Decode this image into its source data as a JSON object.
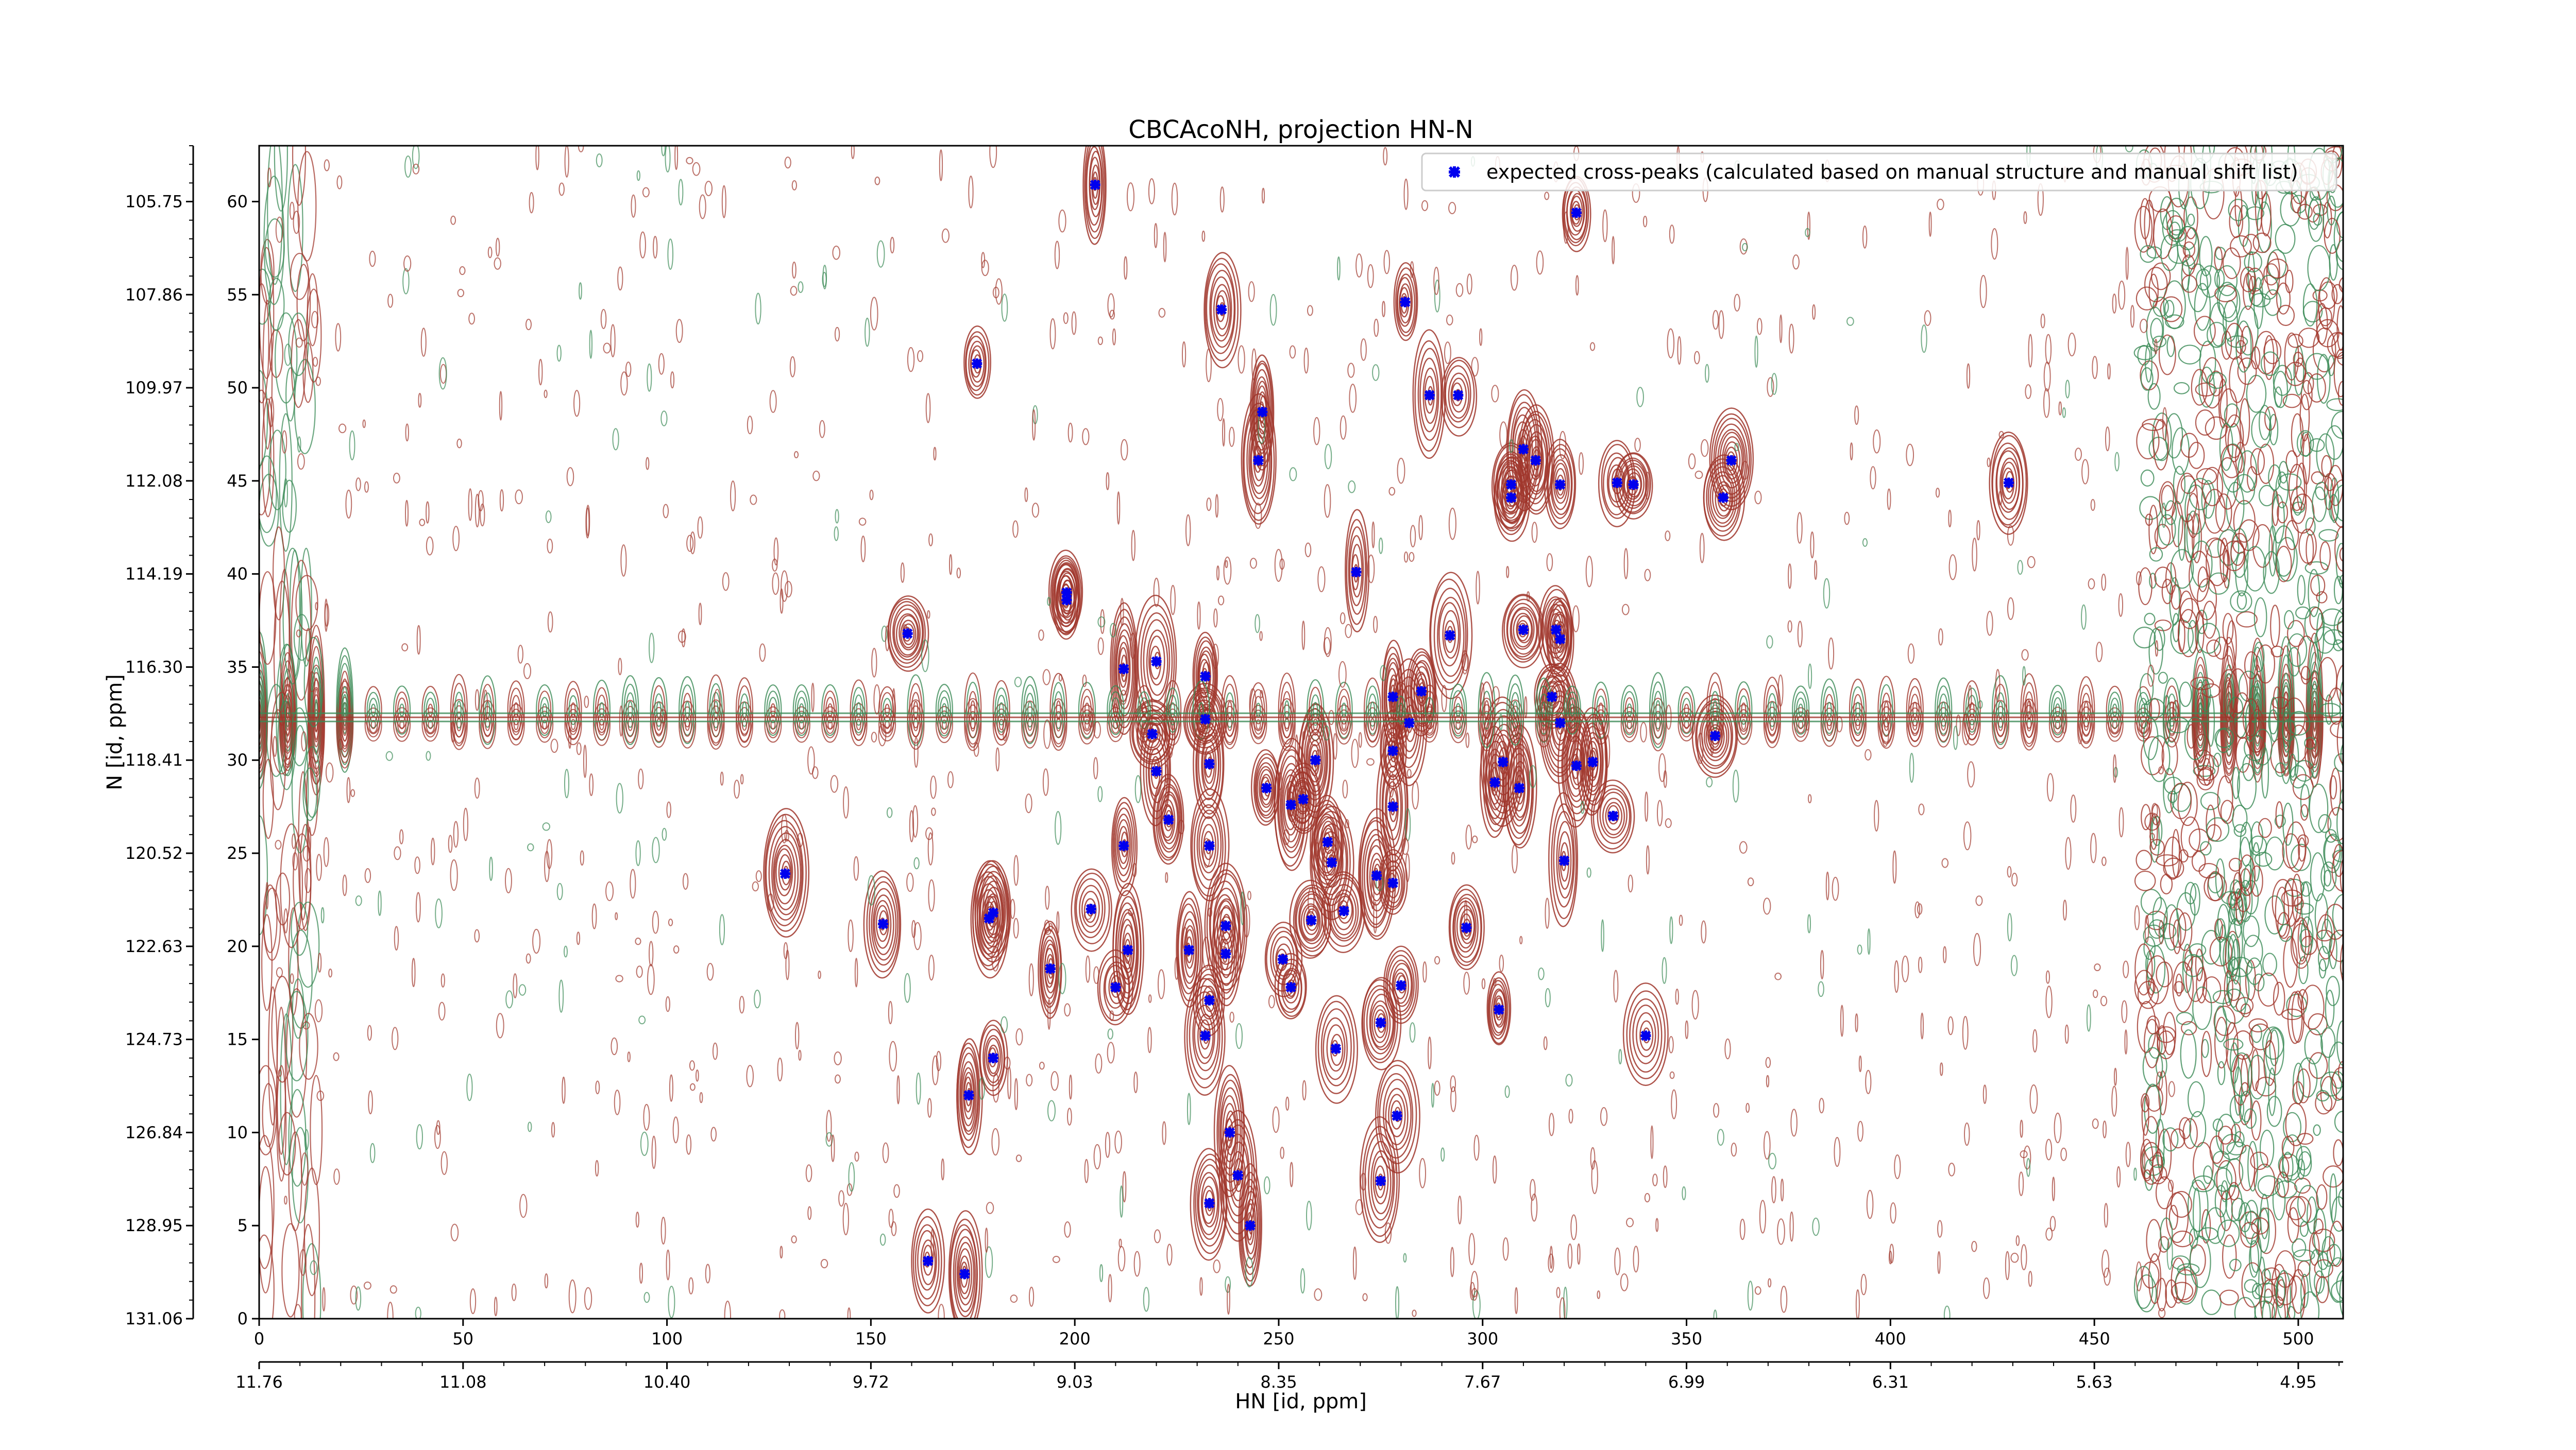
{
  "chart_data": {
    "type": "scatter",
    "title": "CBCAcoNH, projection HN-N",
    "xlabel": "HN [id, ppm]",
    "ylabel": "N [id, ppm]",
    "xlim": [
      0,
      511
    ],
    "ylim": [
      0,
      63
    ],
    "x_ticks": [
      0,
      50,
      100,
      150,
      200,
      250,
      300,
      350,
      400,
      450,
      500
    ],
    "y_ticks": [
      0,
      5,
      10,
      15,
      20,
      25,
      30,
      35,
      40,
      45,
      50,
      55,
      60
    ],
    "x_secondary_ticks": [
      {
        "pos": 0,
        "label": "11.76"
      },
      {
        "pos": 50,
        "label": "11.08"
      },
      {
        "pos": 100,
        "label": "10.40"
      },
      {
        "pos": 150,
        "label": "9.72"
      },
      {
        "pos": 200,
        "label": "9.03"
      },
      {
        "pos": 250,
        "label": "8.35"
      },
      {
        "pos": 300,
        "label": "7.67"
      },
      {
        "pos": 350,
        "label": "6.99"
      },
      {
        "pos": 400,
        "label": "6.31"
      },
      {
        "pos": 450,
        "label": "5.63"
      },
      {
        "pos": 500,
        "label": "4.95"
      }
    ],
    "y_secondary_ticks": [
      {
        "pos": 0,
        "label": "131.06"
      },
      {
        "pos": 5,
        "label": "128.95"
      },
      {
        "pos": 10,
        "label": "126.84"
      },
      {
        "pos": 15,
        "label": "124.73"
      },
      {
        "pos": 20,
        "label": "122.63"
      },
      {
        "pos": 25,
        "label": "120.52"
      },
      {
        "pos": 30,
        "label": "118.41"
      },
      {
        "pos": 35,
        "label": "116.30"
      },
      {
        "pos": 40,
        "label": "114.19"
      },
      {
        "pos": 45,
        "label": "112.08"
      },
      {
        "pos": 50,
        "label": "109.97"
      },
      {
        "pos": 55,
        "label": "107.86"
      },
      {
        "pos": 60,
        "label": "105.75"
      }
    ],
    "legend": {
      "position": "top-right",
      "entries": [
        "expected cross-peaks (calculated based on manual structure and manual shift list)"
      ]
    },
    "grid": false,
    "contour_colors": {
      "positive": "#a0362b",
      "negative": "#3a8a55"
    },
    "marker_color": "#0000ee",
    "series": [
      {
        "name": "expected cross-peaks (calculated based on manual structure and manual shift list)",
        "points": [
          [
            205,
            60.9
          ],
          [
            323,
            59.4
          ],
          [
            236,
            54.2
          ],
          [
            281,
            54.6
          ],
          [
            176,
            51.3
          ],
          [
            246,
            48.7
          ],
          [
            287,
            49.6
          ],
          [
            294,
            49.6
          ],
          [
            245,
            46.1
          ],
          [
            310,
            46.7
          ],
          [
            313,
            46.1
          ],
          [
            307,
            44.8
          ],
          [
            307,
            44.1
          ],
          [
            319,
            44.8
          ],
          [
            333,
            44.9
          ],
          [
            337,
            44.8
          ],
          [
            361,
            46.1
          ],
          [
            359,
            44.1
          ],
          [
            429,
            44.9
          ],
          [
            269,
            40.1
          ],
          [
            198,
            39.0
          ],
          [
            198,
            38.6
          ],
          [
            159,
            36.8
          ],
          [
            292,
            36.7
          ],
          [
            310,
            37.0
          ],
          [
            318,
            37.0
          ],
          [
            319,
            36.5
          ],
          [
            212,
            34.9
          ],
          [
            220,
            35.3
          ],
          [
            232,
            34.5
          ],
          [
            232,
            32.2
          ],
          [
            278,
            33.4
          ],
          [
            285,
            33.7
          ],
          [
            317,
            33.4
          ],
          [
            282,
            32.0
          ],
          [
            319,
            32.0
          ],
          [
            219,
            31.4
          ],
          [
            278,
            30.5
          ],
          [
            259,
            30.0
          ],
          [
            305,
            29.9
          ],
          [
            303,
            28.8
          ],
          [
            233,
            29.8
          ],
          [
            220,
            29.4
          ],
          [
            323,
            29.7
          ],
          [
            327,
            29.9
          ],
          [
            357,
            31.3
          ],
          [
            247,
            28.5
          ],
          [
            253,
            27.6
          ],
          [
            256,
            27.9
          ],
          [
            278,
            27.5
          ],
          [
            309,
            28.5
          ],
          [
            223,
            26.8
          ],
          [
            332,
            27.0
          ],
          [
            212,
            25.4
          ],
          [
            233,
            25.4
          ],
          [
            262,
            25.6
          ],
          [
            263,
            24.5
          ],
          [
            320,
            24.6
          ],
          [
            129,
            23.9
          ],
          [
            274,
            23.8
          ],
          [
            278,
            23.4
          ],
          [
            153,
            21.2
          ],
          [
            179,
            21.5
          ],
          [
            180,
            21.8
          ],
          [
            204,
            22.0
          ],
          [
            237,
            21.1
          ],
          [
            258,
            21.4
          ],
          [
            266,
            21.9
          ],
          [
            296,
            21.0
          ],
          [
            213,
            19.8
          ],
          [
            228,
            19.8
          ],
          [
            237,
            19.6
          ],
          [
            251,
            19.3
          ],
          [
            194,
            18.8
          ],
          [
            210,
            17.8
          ],
          [
            253,
            17.8
          ],
          [
            280,
            17.9
          ],
          [
            233,
            17.1
          ],
          [
            304,
            16.6
          ],
          [
            275,
            15.9
          ],
          [
            232,
            15.2
          ],
          [
            340,
            15.2
          ],
          [
            180,
            14.0
          ],
          [
            264,
            14.5
          ],
          [
            174,
            12.0
          ],
          [
            279,
            10.9
          ],
          [
            238,
            10.0
          ],
          [
            240,
            7.7
          ],
          [
            275,
            7.4
          ],
          [
            233,
            6.2
          ],
          [
            243,
            5.0
          ],
          [
            164,
            3.1
          ],
          [
            173,
            2.4
          ]
        ]
      }
    ]
  }
}
